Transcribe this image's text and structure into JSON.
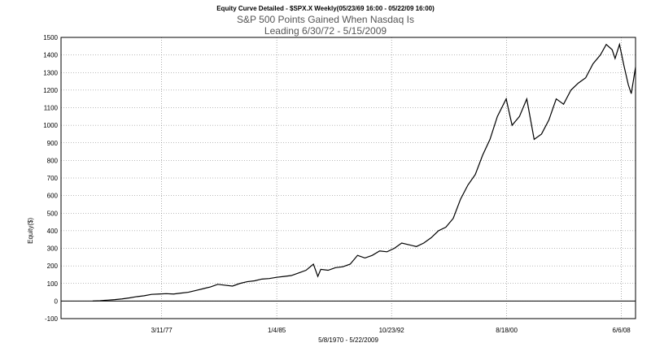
{
  "chart_data": {
    "type": "line",
    "title": "Equity Curve Detailed - $SPX.X Weekly(05/23/69 16:00 - 05/22/09 16:00)",
    "subtitle": "S&P 500 Points Gained When Nasdaq Is",
    "subtitle2": "Leading 6/30/72 - 5/15/2009",
    "ylabel": "Equity($)",
    "xlabel": "5/8/1970 - 5/22/2009",
    "ylim": [
      -100,
      1500
    ],
    "xlim": [
      1970.35,
      2009.39
    ],
    "y_ticks": [
      "1500",
      "1400",
      "1300",
      "1200",
      "1100",
      "1000",
      "900",
      "800",
      "700",
      "600",
      "500",
      "400",
      "300",
      "200",
      "100",
      "0",
      "-100"
    ],
    "x_ticks": [
      {
        "label": "3/11/77",
        "x": 1977.19
      },
      {
        "label": "1/4/85",
        "x": 1985.01
      },
      {
        "label": "10/23/92",
        "x": 1992.81
      },
      {
        "label": "8/18/00",
        "x": 2000.63
      },
      {
        "label": "6/6/08",
        "x": 2008.43
      }
    ],
    "grid": true,
    "series": [
      {
        "x": [
          1972.5,
          1973.0,
          1973.5,
          1974.0,
          1974.5,
          1975.0,
          1975.5,
          1976.0,
          1976.5,
          1977.0,
          1977.5,
          1978.0,
          1978.5,
          1979.0,
          1979.5,
          1980.0,
          1980.5,
          1981.0,
          1981.5,
          1982.0,
          1982.5,
          1983.0,
          1983.5,
          1984.0,
          1984.5,
          1985.0,
          1985.5,
          1986.0,
          1986.5,
          1987.0,
          1987.5,
          1987.8,
          1988.0,
          1988.5,
          1989.0,
          1989.5,
          1990.0,
          1990.5,
          1991.0,
          1991.5,
          1992.0,
          1992.5,
          1993.0,
          1993.5,
          1994.0,
          1994.5,
          1995.0,
          1995.5,
          1996.0,
          1996.5,
          1997.0,
          1997.5,
          1998.0,
          1998.5,
          1999.0,
          1999.5,
          2000.0,
          2000.3,
          2000.6,
          2001.0,
          2001.5,
          2002.0,
          2002.5,
          2003.0,
          2003.5,
          2004.0,
          2004.5,
          2005.0,
          2005.5,
          2006.0,
          2006.5,
          2007.0,
          2007.4,
          2007.8,
          2008.0,
          2008.3,
          2008.6,
          2008.9,
          2009.1,
          2009.39
        ],
        "y": [
          0,
          2,
          5,
          8,
          12,
          18,
          25,
          30,
          38,
          40,
          42,
          40,
          45,
          50,
          60,
          70,
          80,
          95,
          90,
          85,
          100,
          110,
          115,
          125,
          128,
          135,
          140,
          145,
          160,
          175,
          210,
          140,
          180,
          175,
          190,
          195,
          210,
          260,
          245,
          260,
          285,
          280,
          300,
          330,
          320,
          310,
          330,
          360,
          400,
          420,
          470,
          580,
          660,
          720,
          830,
          920,
          1050,
          1100,
          1150,
          1000,
          1050,
          1150,
          920,
          950,
          1030,
          1150,
          1120,
          1200,
          1240,
          1270,
          1350,
          1400,
          1460,
          1430,
          1380,
          1460,
          1340,
          1230,
          1180,
          1330
        ]
      }
    ]
  }
}
